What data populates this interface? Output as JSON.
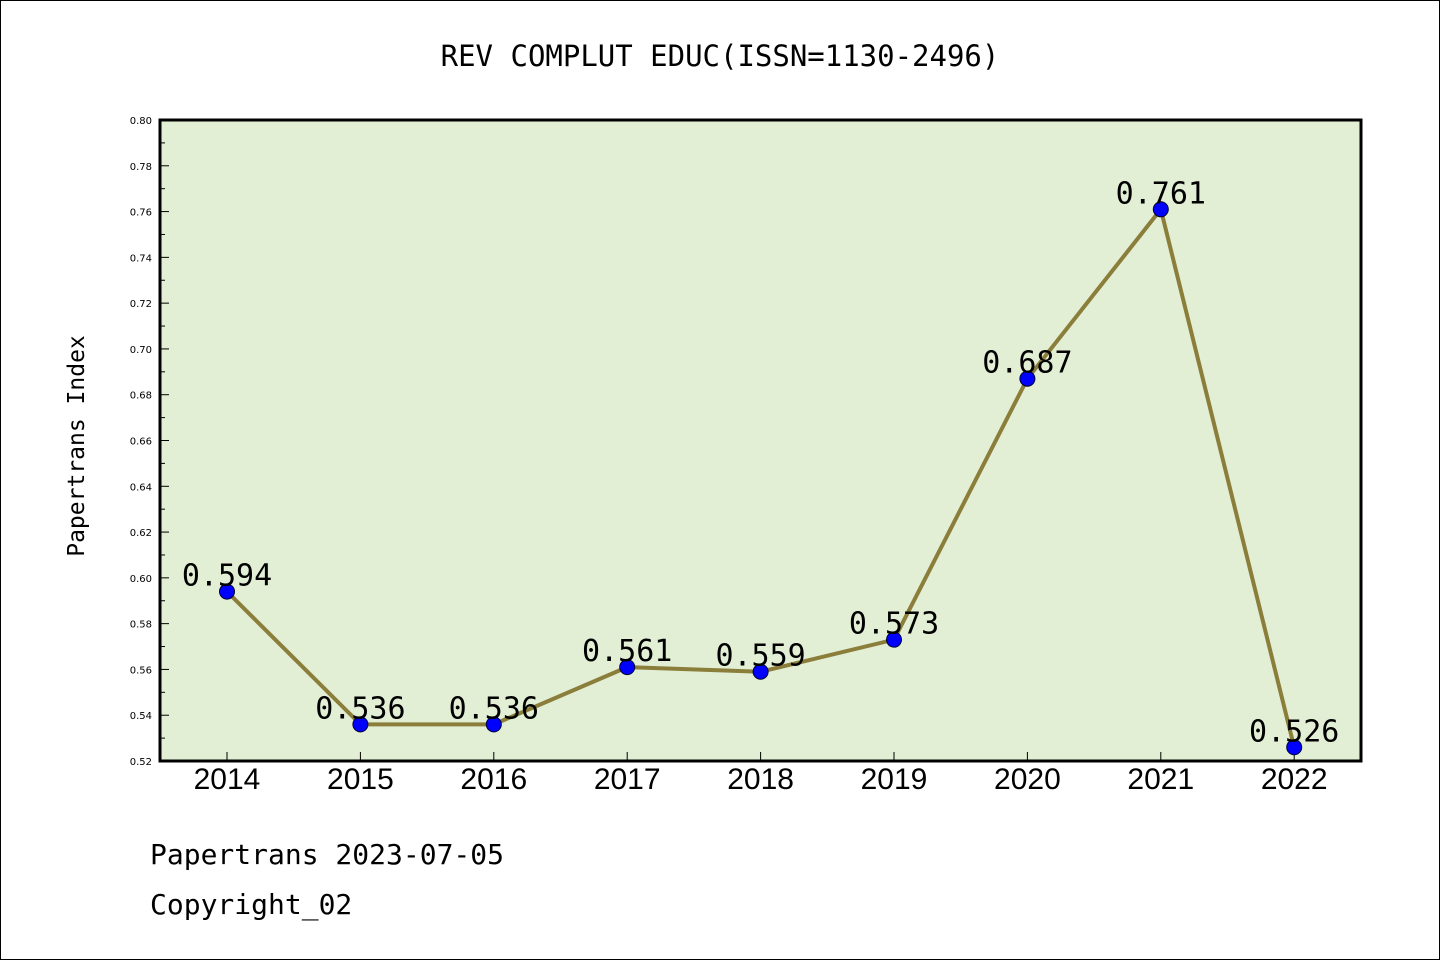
{
  "chart_data": {
    "type": "line",
    "title": "REV COMPLUT EDUC(ISSN=1130-2496)",
    "ylabel": "Papertrans Index",
    "xlabel": "",
    "x": [
      "2014",
      "2015",
      "2016",
      "2017",
      "2018",
      "2019",
      "2020",
      "2021",
      "2022"
    ],
    "series": [
      {
        "values": [
          0.594,
          0.536,
          0.536,
          0.561,
          0.559,
          0.573,
          0.687,
          0.761,
          0.526
        ],
        "labels": [
          "0.594",
          "0.536",
          "0.536",
          "0.561",
          "0.559",
          "0.573",
          "0.687",
          "0.761",
          "0.526"
        ]
      }
    ],
    "ylim": [
      0.52,
      0.8
    ],
    "yticks": [
      "0.52",
      "0.54",
      "0.56",
      "0.58",
      "0.60",
      "0.62",
      "0.64",
      "0.66",
      "0.68",
      "0.70",
      "0.72",
      "0.74",
      "0.76",
      "0.78",
      "0.80"
    ],
    "grid": false,
    "colors": {
      "plot_background": "#e2efd5",
      "line": "#8b7d3a",
      "marker": "#0000ff"
    }
  },
  "footer": {
    "date_line": "Papertrans 2023-07-05",
    "copyright_line": "Copyright_02"
  }
}
